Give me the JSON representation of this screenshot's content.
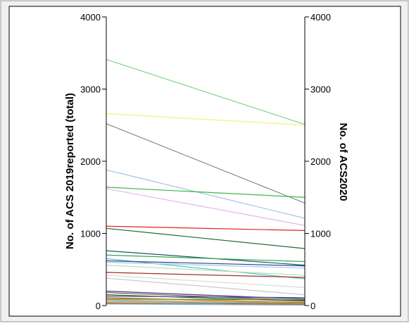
{
  "chart_data": {
    "type": "line",
    "subtype": "parallel-slope",
    "axes": {
      "left": {
        "label": "No. of ACS 2019reported (total)",
        "ylim": [
          0,
          4000
        ],
        "ticks": [
          0,
          1000,
          2000,
          3000,
          4000
        ]
      },
      "right": {
        "label": "No. of ACS2020",
        "ylim": [
          0,
          4000
        ],
        "ticks": [
          0,
          1000,
          2000,
          3000,
          4000
        ]
      }
    },
    "grid": false,
    "legend": "none",
    "colors": {
      "frame_bg": "#f0f0f0",
      "plot_bg": "#ffffff",
      "axis": "#000000"
    },
    "series": [
      {
        "values": [
          3410,
          2510
        ],
        "color": "#7fd47f"
      },
      {
        "values": [
          2660,
          2500
        ],
        "color": "#f3f37a"
      },
      {
        "values": [
          2520,
          1420
        ],
        "color": "#8a8a8a"
      },
      {
        "values": [
          1880,
          1210
        ],
        "color": "#9ec1e8"
      },
      {
        "values": [
          1640,
          1500
        ],
        "color": "#3cb84a"
      },
      {
        "values": [
          1620,
          1110
        ],
        "color": "#e3b8ea"
      },
      {
        "values": [
          1100,
          1040
        ],
        "color": "#e32222"
      },
      {
        "values": [
          1070,
          790
        ],
        "color": "#1f6b34"
      },
      {
        "values": [
          760,
          560
        ],
        "color": "#1f5a66"
      },
      {
        "values": [
          700,
          610
        ],
        "color": "#33a853"
      },
      {
        "values": [
          650,
          370
        ],
        "color": "#4fc9c4"
      },
      {
        "values": [
          620,
          550
        ],
        "color": "#2d3f8c"
      },
      {
        "values": [
          600,
          520
        ],
        "color": "#a3c7e8"
      },
      {
        "values": [
          560,
          420
        ],
        "color": "#b7dfb7"
      },
      {
        "values": [
          460,
          390
        ],
        "color": "#a32e2e"
      },
      {
        "values": [
          420,
          250
        ],
        "color": "#d9d9d9"
      },
      {
        "values": [
          380,
          150
        ],
        "color": "#c9c9c9"
      },
      {
        "values": [
          200,
          90
        ],
        "color": "#3a3a7a"
      },
      {
        "values": [
          180,
          70
        ],
        "color": "#8f4a4a"
      },
      {
        "values": [
          150,
          60
        ],
        "color": "#2e6b2e"
      },
      {
        "values": [
          130,
          110
        ],
        "color": "#4a4a9e"
      },
      {
        "values": [
          110,
          40
        ],
        "color": "#b5651d"
      },
      {
        "values": [
          90,
          80
        ],
        "color": "#6b8e23"
      },
      {
        "values": [
          80,
          30
        ],
        "color": "#c98a2b"
      },
      {
        "values": [
          60,
          20
        ],
        "color": "#5f9ea0"
      },
      {
        "values": [
          40,
          10
        ],
        "color": "#d2691e"
      },
      {
        "values": [
          30,
          20
        ],
        "color": "#7a7a7a"
      },
      {
        "values": [
          20,
          5
        ],
        "color": "#9bbbd6"
      }
    ]
  }
}
